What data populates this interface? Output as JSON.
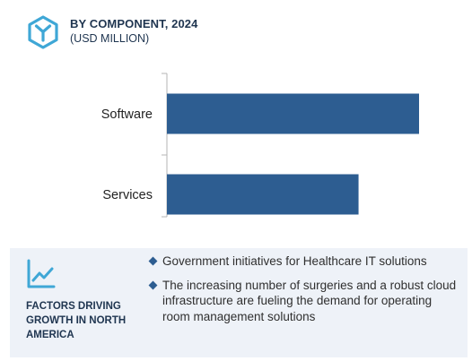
{
  "header": {
    "title": "BY COMPONENT, 2024",
    "subtitle": "(USD MILLION)"
  },
  "chart_data": {
    "type": "bar",
    "orientation": "horizontal",
    "title": "BY COMPONENT, 2024",
    "subtitle": "(USD MILLION)",
    "categories": [
      "Software",
      "Services"
    ],
    "values": [
      100,
      76
    ],
    "xlim": [
      0,
      100
    ],
    "grid": false,
    "legend": "none",
    "bar_color": "#2d5d91"
  },
  "factors": {
    "label": "FACTORS DRIVING GROWTH IN NORTH AMERICA",
    "items": [
      "Government initiatives for Healthcare IT solutions",
      "The increasing number of surgeries and a robust cloud infrastructure are fueling the demand for operating room management solutions"
    ]
  },
  "colors": {
    "accent": "#2d5d91",
    "logo": "#3fa7d6",
    "panel_bg": "#eef2f8",
    "title_text": "#1f3550"
  },
  "icons": {
    "logo": "hexagon-y-logo-icon",
    "growth": "line-chart-icon"
  }
}
